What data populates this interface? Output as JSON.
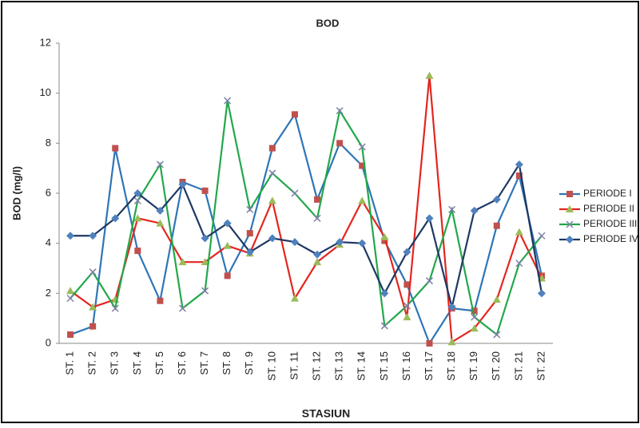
{
  "chart_data": {
    "type": "line",
    "title": "BOD",
    "x_label": "STASIUN",
    "y_label": "BOD (mg/l)",
    "categories": [
      "ST. 1",
      "ST. 2",
      "ST. 3",
      "ST. 4",
      "ST. 5",
      "ST. 6",
      "ST. 7",
      "ST. 8",
      "ST. 9",
      "ST. 10",
      "ST. 11",
      "ST. 12",
      "ST. 13",
      "ST. 14",
      "ST. 15",
      "ST. 16",
      "ST. 17",
      "ST. 18",
      "ST. 19",
      "ST. 20",
      "ST. 21",
      "ST. 22"
    ],
    "ylim": [
      0,
      12
    ],
    "yticks": [
      0,
      2,
      4,
      6,
      8,
      10,
      12
    ],
    "grid": false,
    "legend": "right",
    "series": [
      {
        "name": "PERIODE I",
        "color": "#2e75b6",
        "marker": "square",
        "marker_color": "#c0504d",
        "values": [
          0.35,
          0.68,
          7.8,
          3.7,
          1.7,
          6.45,
          6.1,
          2.7,
          4.4,
          7.8,
          9.15,
          5.75,
          8.0,
          7.1,
          4.1,
          2.35,
          0.0,
          1.4,
          1.3,
          4.7,
          6.7,
          2.7
        ]
      },
      {
        "name": "PERIODE II",
        "color": "#e3261f",
        "marker": "triangle",
        "marker_color": "#9bbb59",
        "values": [
          2.1,
          1.45,
          1.75,
          5.0,
          4.8,
          3.25,
          3.25,
          3.9,
          3.6,
          5.7,
          1.8,
          3.25,
          3.95,
          5.7,
          4.25,
          1.05,
          10.7,
          0.05,
          0.6,
          1.75,
          4.45,
          2.6
        ]
      },
      {
        "name": "PERIODE III",
        "color": "#22a84a",
        "marker": "x",
        "marker_color": "#7f7fa8",
        "values": [
          1.8,
          2.85,
          1.4,
          5.7,
          7.15,
          1.4,
          2.1,
          9.7,
          5.35,
          6.8,
          6.0,
          5.0,
          9.3,
          7.85,
          0.7,
          1.5,
          2.5,
          5.35,
          1.05,
          0.35,
          3.2,
          4.3
        ]
      },
      {
        "name": "PERIODE IV",
        "color": "#1f3864",
        "marker": "diamond",
        "marker_color": "#4f81bd",
        "values": [
          4.3,
          4.3,
          5.0,
          6.0,
          5.3,
          6.35,
          4.2,
          4.8,
          3.65,
          4.2,
          4.05,
          3.55,
          4.05,
          4.0,
          2.0,
          3.65,
          5.0,
          1.45,
          5.3,
          5.75,
          7.15,
          2.0
        ]
      }
    ]
  }
}
